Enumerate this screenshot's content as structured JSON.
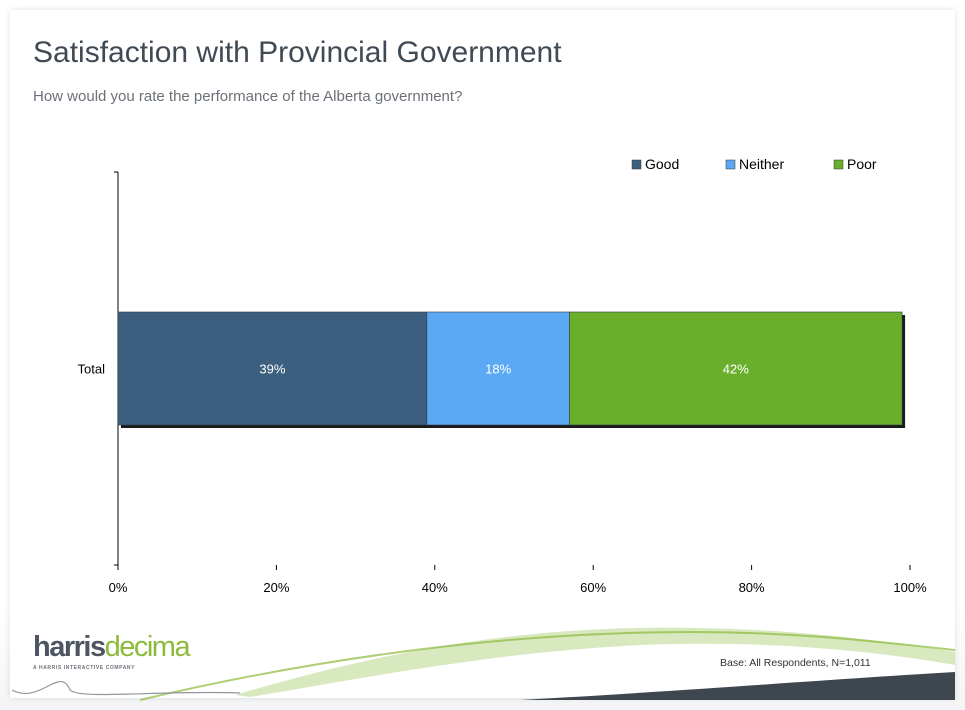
{
  "slide": {
    "title": "Satisfaction with Provincial Government",
    "subtitle": "How would you rate the performance of the Alberta government?",
    "base_note": "Base: All Respondents, N=1,011",
    "logo": {
      "part_a": "harris",
      "part_b": "decima",
      "tagline": "A HARRIS INTERACTIVE COMPANY"
    },
    "colors": {
      "title": "#404a55",
      "swoosh_green": "#8cbb3c",
      "swoosh_dark": "#3e4650"
    }
  },
  "chart_data": {
    "type": "bar",
    "orientation": "horizontal",
    "stacked": true,
    "categories": [
      "Total"
    ],
    "series": [
      {
        "name": "Good",
        "values": [
          39
        ],
        "label": "39%",
        "color": "#3d5f7f"
      },
      {
        "name": "Neither",
        "values": [
          18
        ],
        "label": "18%",
        "color": "#5ba9f5"
      },
      {
        "name": "Poor",
        "values": [
          42
        ],
        "label": "42%",
        "color": "#6aaf2c"
      }
    ],
    "xlim": [
      0,
      100
    ],
    "x_ticks": [
      "0%",
      "20%",
      "40%",
      "60%",
      "80%",
      "100%"
    ],
    "x_tick_values": [
      0,
      20,
      40,
      60,
      80,
      100
    ],
    "grid": false,
    "legend_position": "top-right",
    "xlabel": "",
    "ylabel": ""
  }
}
